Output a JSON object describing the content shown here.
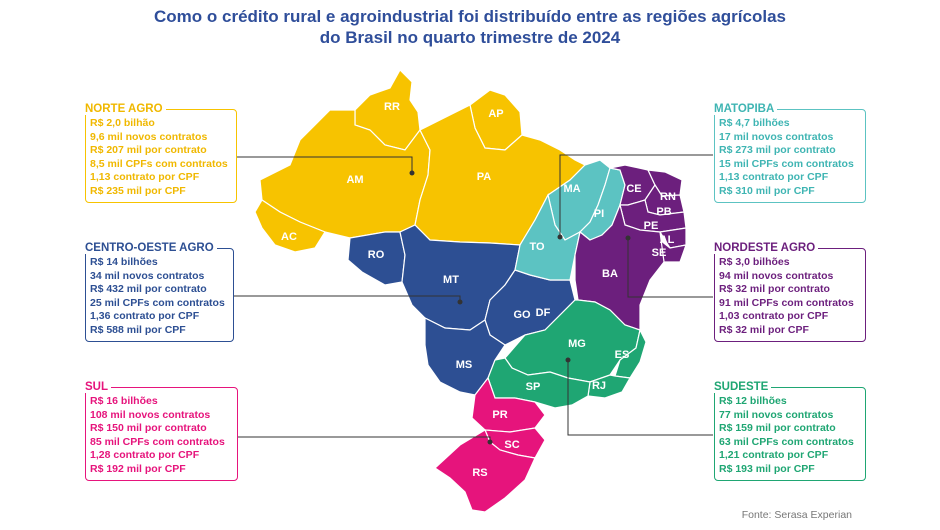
{
  "title": {
    "line1": "Como o crédito rural e agroindustrial foi distribuído entre as regiões agrícolas",
    "line2": "do Brasil no quarto trimestre de 2024"
  },
  "colors": {
    "norte": "#f7c300",
    "centro_oeste": "#2d4f93",
    "matopiba": "#5cc3c2",
    "nordeste": "#6c1f7d",
    "sudeste": "#1fa673",
    "sul": "#e6147c",
    "title": "#2f4e9a"
  },
  "panels": {
    "norte": {
      "title": "NORTE AGRO",
      "lines": [
        "R$ 2,0 bilhão",
        "9,6 mil novos contratos",
        "R$ 207 mil por contrato",
        "8,5 mil CPFs com contratos",
        "1,13 contrato por CPF",
        "R$ 235 mil por CPF"
      ]
    },
    "centro_oeste": {
      "title": "CENTRO-OESTE AGRO",
      "lines": [
        "R$ 14 bilhões",
        "34 mil novos contratos",
        "R$ 432 mil por contrato",
        "25 mil CPFs com contratos",
        "1,36 contrato por CPF",
        "R$ 588 mil por CPF"
      ]
    },
    "sul": {
      "title": "SUL",
      "lines": [
        "R$ 16 bilhões",
        "108 mil novos contratos",
        "R$ 150 mil por contrato",
        "85 mil CPFs com contratos",
        "1,28 contrato por CPF",
        "R$ 192 mil por CPF"
      ]
    },
    "matopiba": {
      "title": "MATOPIBA",
      "lines": [
        "R$ 4,7 bilhões",
        "17 mil novos contratos",
        "R$ 273 mil por contrato",
        "15 mil CPFs com contratos",
        "1,13 contrato por CPF",
        "R$ 310 mil por CPF"
      ]
    },
    "nordeste": {
      "title": "NORDESTE AGRO",
      "lines": [
        "R$ 3,0 bilhões",
        "94 mil novos contratos",
        "R$ 32 mil por contrato",
        "91 mil CPFs com contratos",
        "1,03 contrato por CPF",
        "R$ 32 mil por CPF"
      ]
    },
    "sudeste": {
      "title": "SUDESTE",
      "lines": [
        "R$ 12 bilhões",
        "77 mil novos contratos",
        "R$ 159 mil por contrato",
        "63 mil CPFs com contratos",
        "1,21 contrato por CPF",
        "R$ 193 mil por CPF"
      ]
    }
  },
  "states": [
    "RR",
    "AP",
    "AM",
    "PA",
    "AC",
    "RO",
    "MT",
    "TO",
    "MA",
    "PI",
    "CE",
    "RN",
    "PB",
    "PE",
    "AL",
    "SE",
    "BA",
    "GO",
    "DF",
    "MS",
    "MG",
    "ES",
    "SP",
    "RJ",
    "PR",
    "SC",
    "RS"
  ],
  "source": "Fonte: Serasa Experian"
}
